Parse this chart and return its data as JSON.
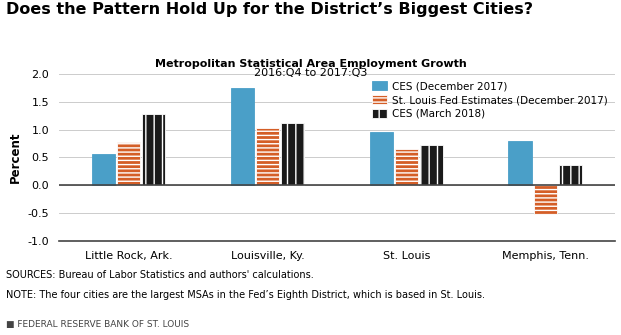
{
  "title_main": "Does the Pattern Hold Up for the District’s Biggest Cities?",
  "title_sub": "Metropolitan Statistical Area Employment Growth",
  "title_sub2": "2016:Q4 to 2017:Q3",
  "ylabel": "Percent",
  "categories": [
    "Little Rock, Ark.",
    "Louisville, Ky.",
    "St. Louis",
    "Memphis, Tenn."
  ],
  "series": {
    "CES (December 2017)": [
      0.57,
      1.75,
      0.95,
      0.8
    ],
    "St. Louis Fed Estimates (December 2017)": [
      0.77,
      1.02,
      0.65,
      -0.52
    ],
    "CES (March 2018)": [
      1.28,
      1.12,
      0.73,
      0.37
    ]
  },
  "colors": {
    "CES (December 2017)": "#4a9fc8",
    "St. Louis Fed Estimates (December 2017)": "#d45e27",
    "CES (March 2018)": "#1a1a1a"
  },
  "hatch": {
    "CES (December 2017)": "",
    "St. Louis Fed Estimates (December 2017)": "----",
    "CES (March 2018)": "||"
  },
  "hatch_edgecolor": {
    "CES (December 2017)": "#4a9fc8",
    "St. Louis Fed Estimates (December 2017)": "#ffffff",
    "CES (March 2018)": "#ffffff"
  },
  "ylim": [
    -1.0,
    2.0
  ],
  "yticks": [
    -1.0,
    -0.5,
    0.0,
    0.5,
    1.0,
    1.5,
    2.0
  ],
  "sources": "SOURCES: Bureau of Labor Statistics and authors' calculations.",
  "note": "NOTE: The four cities are the largest MSAs in the Fed’s Eighth District, which is based in St. Louis.",
  "footer": "FEDERAL RESERVE BANK OF ST. LOUIS",
  "bg_color": "#ffffff",
  "grid_color": "#cccccc",
  "bar_width": 0.18
}
